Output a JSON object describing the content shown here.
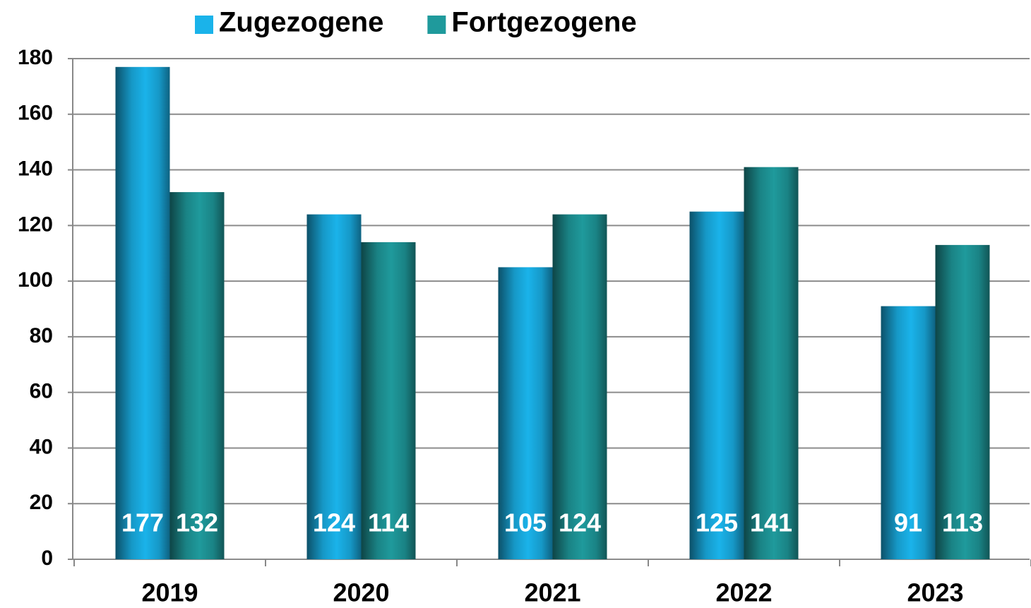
{
  "chart_data": {
    "type": "bar",
    "categories": [
      "2019",
      "2020",
      "2021",
      "2022",
      "2023"
    ],
    "series": [
      {
        "name": "Zugezogene",
        "color": "#1ab3ea",
        "values": [
          177,
          124,
          105,
          125,
          91
        ]
      },
      {
        "name": "Fortgezogene",
        "color": "#1f9a9c",
        "values": [
          132,
          114,
          124,
          141,
          113
        ]
      }
    ],
    "ylim": [
      0,
      180
    ],
    "yticks": [
      0,
      20,
      40,
      60,
      80,
      100,
      120,
      140,
      160,
      180
    ],
    "grid": true,
    "legend": "top"
  }
}
